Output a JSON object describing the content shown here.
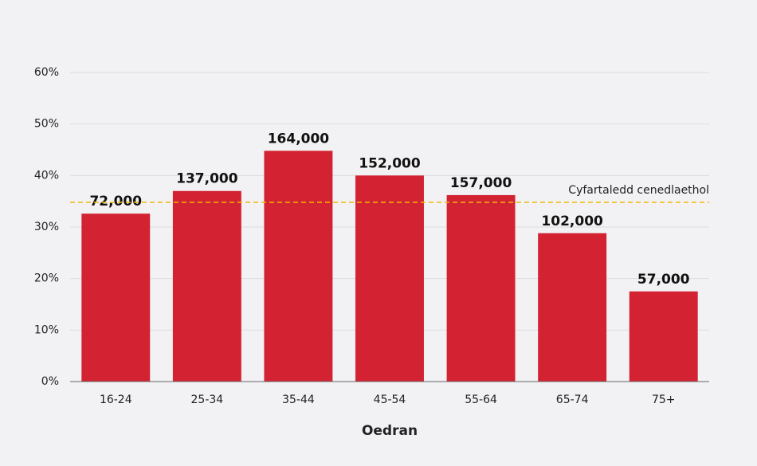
{
  "chart_data": {
    "type": "bar",
    "x_label": "Oedran",
    "categories": [
      "16-24",
      "25-34",
      "35-44",
      "45-54",
      "55-64",
      "65-74",
      "75+"
    ],
    "values": [
      32.6,
      37.0,
      44.8,
      40.0,
      36.2,
      28.8,
      17.5
    ],
    "bar_labels": [
      "72,000",
      "137,000",
      "164,000",
      "152,000",
      "157,000",
      "102,000",
      "57,000"
    ],
    "color": "#d32333",
    "ylim": [
      0,
      60
    ],
    "yticks": [
      {
        "value": 0,
        "label": "0%"
      },
      {
        "value": 10,
        "label": "10%"
      },
      {
        "value": 20,
        "label": "20%"
      },
      {
        "value": 30,
        "label": "30%"
      },
      {
        "value": 40,
        "label": "40%"
      },
      {
        "value": 50,
        "label": "50%"
      },
      {
        "value": 60,
        "label": "60%"
      }
    ],
    "grid": true,
    "reference_line": {
      "value": 34.8,
      "label": "Cyfartaledd cenedlaethol",
      "color": "#f2b705"
    }
  }
}
